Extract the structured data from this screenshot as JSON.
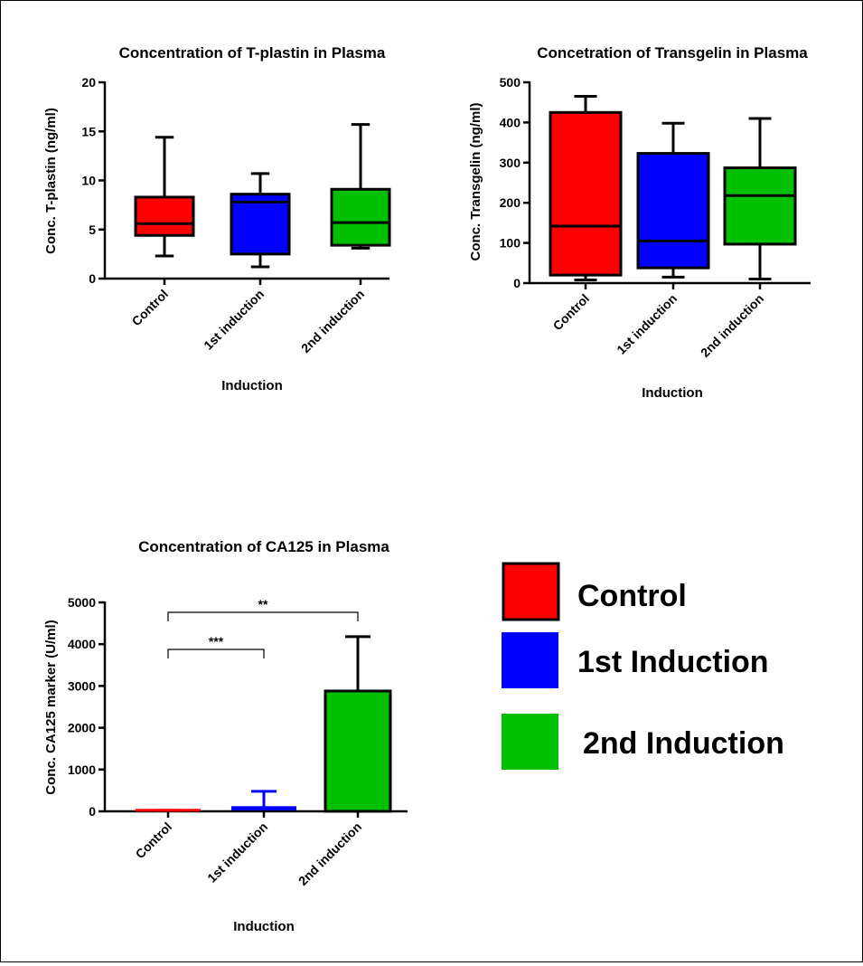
{
  "chart_data": [
    {
      "type": "box",
      "title": "Concentration of T-plastin in Plasma",
      "xlabel": "Induction",
      "ylabel": "Conc. T-plastin (ng/ml)",
      "ylim": [
        0,
        20
      ],
      "yticks": [
        0,
        5,
        10,
        15,
        20
      ],
      "categories": [
        "Control",
        "1st induction",
        "2nd induction"
      ],
      "boxes": [
        {
          "min": 2.3,
          "q1": 4.4,
          "median": 5.6,
          "q3": 8.3,
          "max": 14.4,
          "color": "#ff0000"
        },
        {
          "min": 1.2,
          "q1": 2.5,
          "median": 7.8,
          "q3": 8.6,
          "max": 10.7,
          "color": "#0000ff"
        },
        {
          "min": 3.1,
          "q1": 3.4,
          "median": 5.7,
          "q3": 9.1,
          "max": 15.7,
          "color": "#00c000"
        }
      ]
    },
    {
      "type": "box",
      "title": "Concetration of Transgelin in Plasma",
      "xlabel": "Induction",
      "ylabel": "Conc. Transgelin (ng/ml)",
      "ylim": [
        0,
        500
      ],
      "yticks": [
        0,
        100,
        200,
        300,
        400,
        500
      ],
      "categories": [
        "Control",
        "1st induction",
        "2nd induction"
      ],
      "boxes": [
        {
          "min": 8,
          "q1": 20,
          "median": 142,
          "q3": 425,
          "max": 465,
          "color": "#ff0000"
        },
        {
          "min": 15,
          "q1": 38,
          "median": 105,
          "q3": 323,
          "max": 398,
          "color": "#0000ff"
        },
        {
          "min": 10,
          "q1": 97,
          "median": 218,
          "q3": 287,
          "max": 410,
          "color": "#00c000"
        }
      ]
    },
    {
      "type": "bar",
      "title": "Concentration of CA125 in Plasma",
      "xlabel": "Induction",
      "ylabel": "Conc. CA125 marker (U/ml)",
      "ylim": [
        0,
        5000
      ],
      "yticks": [
        0,
        1000,
        2000,
        3000,
        4000,
        5000
      ],
      "categories": [
        "Control",
        "1st induction",
        "2nd induction"
      ],
      "values": [
        15,
        80,
        2880
      ],
      "errors": [
        10,
        400,
        1300
      ],
      "colors": [
        "#ff0000",
        "#0000ff",
        "#00c000"
      ],
      "significance": [
        {
          "from": 0,
          "to": 1,
          "label": "***"
        },
        {
          "from": 0,
          "to": 2,
          "label": "**"
        }
      ]
    }
  ],
  "legend": [
    {
      "label": "Control",
      "color": "#ff0000"
    },
    {
      "label": "1st Induction",
      "color": "#0000ff"
    },
    {
      "label": "2nd Induction",
      "color": "#00c000"
    }
  ]
}
